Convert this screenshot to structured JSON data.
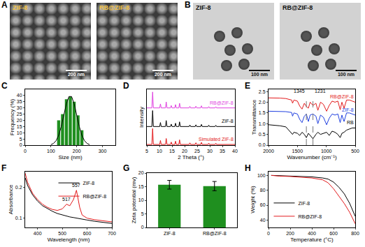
{
  "images": [
    {
      "panel": "A",
      "items": [
        {
          "label": "ZIF-8",
          "scale_bar": "200 nm"
        },
        {
          "label": "RB@ZIF-8",
          "scale_bar": "200 nm"
        }
      ]
    },
    {
      "panel": "B",
      "items": [
        {
          "label": "ZIF-8",
          "scale_bar": "100 nm"
        },
        {
          "label": "RB@ZIF-8",
          "scale_bar": "100 nm"
        }
      ]
    }
  ],
  "chart_data": [
    {
      "panel": "C",
      "type": "bar",
      "x": [
        130,
        145,
        160,
        175,
        190,
        205,
        220
      ],
      "values": [
        20,
        25,
        37,
        39,
        35,
        24,
        12
      ],
      "color": "#1f8f1f",
      "fit": {
        "x": [
          100,
          110,
          120,
          130,
          140,
          150,
          160,
          170,
          180,
          190,
          200,
          210,
          220,
          230,
          240,
          250
        ],
        "values": [
          0.4,
          1.4,
          3.6,
          7.9,
          15,
          24.3,
          33.4,
          39.2,
          39.2,
          33.4,
          24.3,
          15,
          7.9,
          3.6,
          1.4,
          0.4
        ],
        "color": "#000000"
      },
      "xlabel": "Size (nm)",
      "ylabel": "Frequency (%)",
      "xlim": [
        0,
        350
      ],
      "xticks": [
        0,
        100,
        200,
        300
      ],
      "ylim": [
        0,
        45
      ],
      "yticks": [
        0,
        5,
        10,
        15,
        20,
        25,
        30,
        35,
        40
      ]
    },
    {
      "panel": "D",
      "type": "line",
      "x": [
        5,
        7.0,
        7.3,
        7.6,
        10.1,
        10.4,
        10.7,
        12.4,
        12.7,
        13.0,
        14.4,
        14.7,
        15.0,
        16.1,
        16.4,
        16.7,
        17.7,
        18.0,
        18.3,
        21.8,
        22.1,
        22.4,
        24.2,
        24.5,
        24.8,
        26.4,
        26.7,
        27.0,
        29.3,
        29.6,
        29.9,
        32.1,
        32.4,
        32.7,
        40
      ],
      "series": [
        {
          "name": "RB@ZIF-8",
          "color": "#e040e0",
          "values": [
            28,
            28,
            40,
            28,
            28,
            31,
            28,
            28,
            32.5,
            28,
            28,
            29.8,
            28,
            28,
            30.5,
            28,
            28,
            31.5,
            28,
            28,
            29.2,
            28,
            28,
            29.3,
            28,
            28,
            29.6,
            28,
            28,
            29,
            28,
            28,
            28.9,
            28,
            28
          ]
        },
        {
          "name": "ZIF-8",
          "color": "#000000",
          "values": [
            14,
            14,
            26,
            14,
            14,
            17,
            14,
            14,
            18.5,
            14,
            14,
            15.8,
            14,
            14,
            16.5,
            14,
            14,
            17.5,
            14,
            14,
            15.2,
            14,
            14,
            15.3,
            14,
            14,
            15.6,
            14,
            14,
            15,
            14,
            14,
            14.9,
            14,
            14
          ]
        },
        {
          "name": "Simulated ZIF-8",
          "color": "#e31a1c",
          "values": [
            0.5,
            0.5,
            12.5,
            0.5,
            0.5,
            3.5,
            0.5,
            0.5,
            5,
            0.5,
            0.5,
            2.3,
            0.5,
            0.5,
            3,
            0.5,
            0.5,
            4,
            0.5,
            0.5,
            1.7,
            0.5,
            0.5,
            1.8,
            0.5,
            0.5,
            2.1,
            0.5,
            0.5,
            1.5,
            0.5,
            0.5,
            1.4,
            0.5,
            0.5
          ]
        }
      ],
      "xlabel": "2 Theta (°)",
      "ylabel": "Intensity",
      "xlim": [
        5,
        40
      ],
      "xticks": [
        5,
        10,
        15,
        20,
        25,
        30,
        35,
        40
      ],
      "ylim": [
        0,
        42
      ],
      "tick_labels": "x"
    },
    {
      "panel": "E",
      "type": "line",
      "x": [
        2000,
        1900,
        1800,
        1700,
        1600,
        1584,
        1560,
        1500,
        1460,
        1420,
        1380,
        1345,
        1310,
        1280,
        1231,
        1180,
        1146,
        1100,
        1050,
        995,
        950,
        900,
        850,
        800,
        760,
        730,
        693,
        650,
        600,
        550,
        500
      ],
      "series": [
        {
          "name": "RB@ZIF-8",
          "color": "#e31a1c",
          "values": [
            2.2,
            2.2,
            2.19,
            2.17,
            2.1,
            1.95,
            2.1,
            2.05,
            1.82,
            1.68,
            1.95,
            1.8,
            1.72,
            2.0,
            1.85,
            1.95,
            1.62,
            2.0,
            1.9,
            1.58,
            1.85,
            2.05,
            2.0,
            2.05,
            1.65,
            2.0,
            1.72,
            2.1,
            2.1,
            2.05,
            2.0
          ]
        },
        {
          "name": "ZIF-8",
          "color": "#1f3fe0",
          "values": [
            1.58,
            1.58,
            1.57,
            1.56,
            1.52,
            1.35,
            1.5,
            1.45,
            1.2,
            1.05,
            1.35,
            1.45,
            1.1,
            1.4,
            1.45,
            1.35,
            1.0,
            1.4,
            1.3,
            0.95,
            1.25,
            1.45,
            1.4,
            1.45,
            1.05,
            1.4,
            1.1,
            1.5,
            1.5,
            1.45,
            1.4
          ]
        },
        {
          "name": "RB",
          "color": "#000000",
          "values": [
            0.95,
            0.93,
            0.9,
            0.85,
            0.55,
            0.5,
            0.6,
            0.55,
            0.45,
            0.6,
            0.5,
            0.35,
            0.55,
            0.45,
            0.3,
            0.5,
            0.6,
            0.5,
            0.55,
            0.6,
            0.45,
            0.65,
            0.6,
            0.5,
            0.35,
            0.55,
            0.6,
            0.7,
            0.75,
            0.8,
            0.8
          ]
        }
      ],
      "annotations": [
        {
          "x": 1345,
          "text": "1345"
        },
        {
          "x": 1231,
          "text": "1231"
        }
      ],
      "xlabel": "Wavenumber (cm⁻¹)",
      "ylabel": "Transmittance",
      "xlim": [
        2000,
        500
      ],
      "xticks": [
        2000,
        1500,
        1000,
        500
      ],
      "ylim": [
        0,
        2.6
      ],
      "yticks": [
        {
          "value": 0,
          "label": "0.0"
        },
        {
          "value": 0.5,
          "label": "0.5"
        },
        {
          "value": 1,
          "label": "1.0"
        },
        {
          "value": 1.5,
          "label": "1.5"
        },
        {
          "value": 2,
          "label": "2.0"
        },
        {
          "value": 2.5,
          "label": "2.5"
        }
      ]
    },
    {
      "panel": "F",
      "type": "line",
      "x": [
        350,
        360,
        380,
        400,
        420,
        440,
        460,
        480,
        500,
        517,
        530,
        545,
        557,
        570,
        580,
        600,
        630,
        660,
        700
      ],
      "series": [
        {
          "name": "ZIF-8",
          "color": "#000000",
          "values": [
            0.23,
            0.205,
            0.175,
            0.155,
            0.14,
            0.13,
            0.122,
            0.115,
            0.11,
            0.107,
            0.104,
            0.102,
            0.1,
            0.098,
            0.097,
            0.094,
            0.09,
            0.087,
            0.083
          ]
        },
        {
          "name": "RB@ZIF-8",
          "color": "#e31a1c",
          "values": [
            0.245,
            0.215,
            0.18,
            0.16,
            0.145,
            0.135,
            0.128,
            0.125,
            0.13,
            0.145,
            0.14,
            0.16,
            0.19,
            0.135,
            0.11,
            0.1,
            0.095,
            0.092,
            0.088
          ]
        }
      ],
      "annotations": [
        {
          "x": 517,
          "y": 0.148,
          "text": "517"
        },
        {
          "x": 557,
          "y": 0.193,
          "text": "557"
        }
      ],
      "legend": "top right",
      "xlabel": "Wavelength (nm)",
      "ylabel": "Absorbance",
      "xlim": [
        350,
        700
      ],
      "xticks": [
        400,
        500,
        600,
        700
      ],
      "ylim": [
        0.07,
        0.25
      ],
      "yticks": [
        0.1,
        0.2
      ]
    },
    {
      "panel": "G",
      "type": "bar",
      "categories": [
        "ZIF-8",
        "RB@ZIF-8"
      ],
      "values": [
        15.7,
        15.2
      ],
      "errors": [
        1.6,
        1.7
      ],
      "color": "#1f8f1f",
      "ylabel": "Zeta potential (mv)",
      "ylim": [
        0,
        20
      ],
      "yticks": [
        0,
        5,
        10,
        15,
        20
      ]
    },
    {
      "panel": "H",
      "type": "line",
      "x": [
        25,
        100,
        200,
        300,
        400,
        500,
        550,
        600,
        650,
        700,
        750,
        800
      ],
      "series": [
        {
          "name": "ZIF-8",
          "color": "#000000",
          "values": [
            100,
            99.5,
            99,
            98.5,
            98,
            96.5,
            95,
            91,
            84,
            75,
            62,
            45
          ]
        },
        {
          "name": "RB@ZIF-8",
          "color": "#e31a1c",
          "values": [
            100,
            99,
            98.5,
            97.5,
            96.5,
            94,
            90,
            82,
            72,
            62,
            50,
            35
          ]
        }
      ],
      "legend": "bottom left",
      "xlabel": "Temperature (°C)",
      "ylabel": "Weight (%)",
      "xlim": [
        0,
        800
      ],
      "xticks": [
        0,
        200,
        400,
        600,
        800
      ],
      "ylim": [
        30,
        105
      ],
      "yticks": [
        40,
        60,
        80,
        100
      ]
    }
  ]
}
